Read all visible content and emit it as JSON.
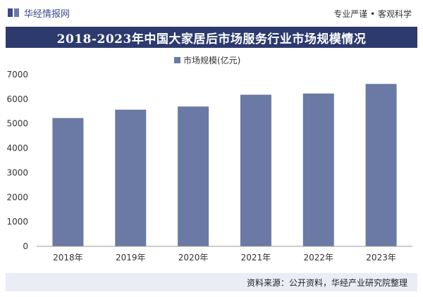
{
  "header": {
    "logo_text": "华经情报网",
    "slogan": "专业严谨 • 客观科学"
  },
  "footer": {
    "source": "资料来源：公开资料，华经产业研究院整理"
  },
  "colors": {
    "bar": "#6a7aa5",
    "title_bg": "#2c3a6e",
    "footer_bg": "#eaedf6"
  },
  "chart_data": {
    "type": "bar",
    "title": "2018-2023年中国大家居后市场服务行业市场规模情况",
    "categories": [
      "2018年",
      "2019年",
      "2020年",
      "2021年",
      "2022年",
      "2023年"
    ],
    "series": [
      {
        "name": "市场规模(亿元)",
        "values": [
          5230,
          5570,
          5700,
          6180,
          6230,
          6620
        ]
      }
    ],
    "ylim": [
      0,
      7000
    ],
    "yticks": [
      0,
      1000,
      2000,
      3000,
      4000,
      5000,
      6000,
      7000
    ],
    "legend": "top-center",
    "grid": false
  }
}
